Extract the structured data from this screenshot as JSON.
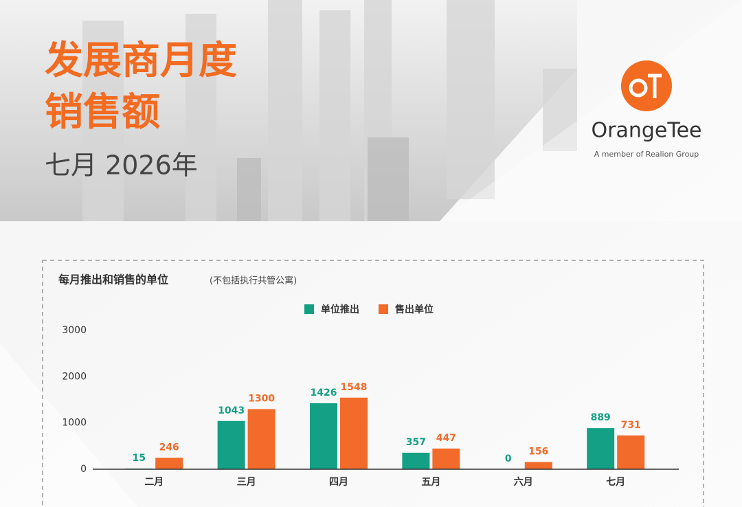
{
  "header": {
    "title_line1": "发展商月度",
    "title_line2": "销售额",
    "subtitle": "七月 2026年"
  },
  "logo": {
    "brand": "OrangeTee",
    "tagline": "A member of Realion Group"
  },
  "chart_data": {
    "type": "bar",
    "title": "每月推出和销售的单位",
    "title_note": "(不包括执行共管公寓)",
    "categories": [
      "二月",
      "三月",
      "四月",
      "五月",
      "六月",
      "七月"
    ],
    "series": [
      {
        "name": "单位推出",
        "color": "#14a085",
        "values": [
          15,
          1043,
          1426,
          357,
          0,
          889
        ]
      },
      {
        "name": "售出单位",
        "color": "#f26b2a",
        "values": [
          246,
          1300,
          1548,
          447,
          156,
          731
        ]
      }
    ],
    "ylim": [
      0,
      3000
    ],
    "yticks": [
      0,
      1000,
      2000,
      3000
    ],
    "grid": false,
    "legend": "top"
  }
}
